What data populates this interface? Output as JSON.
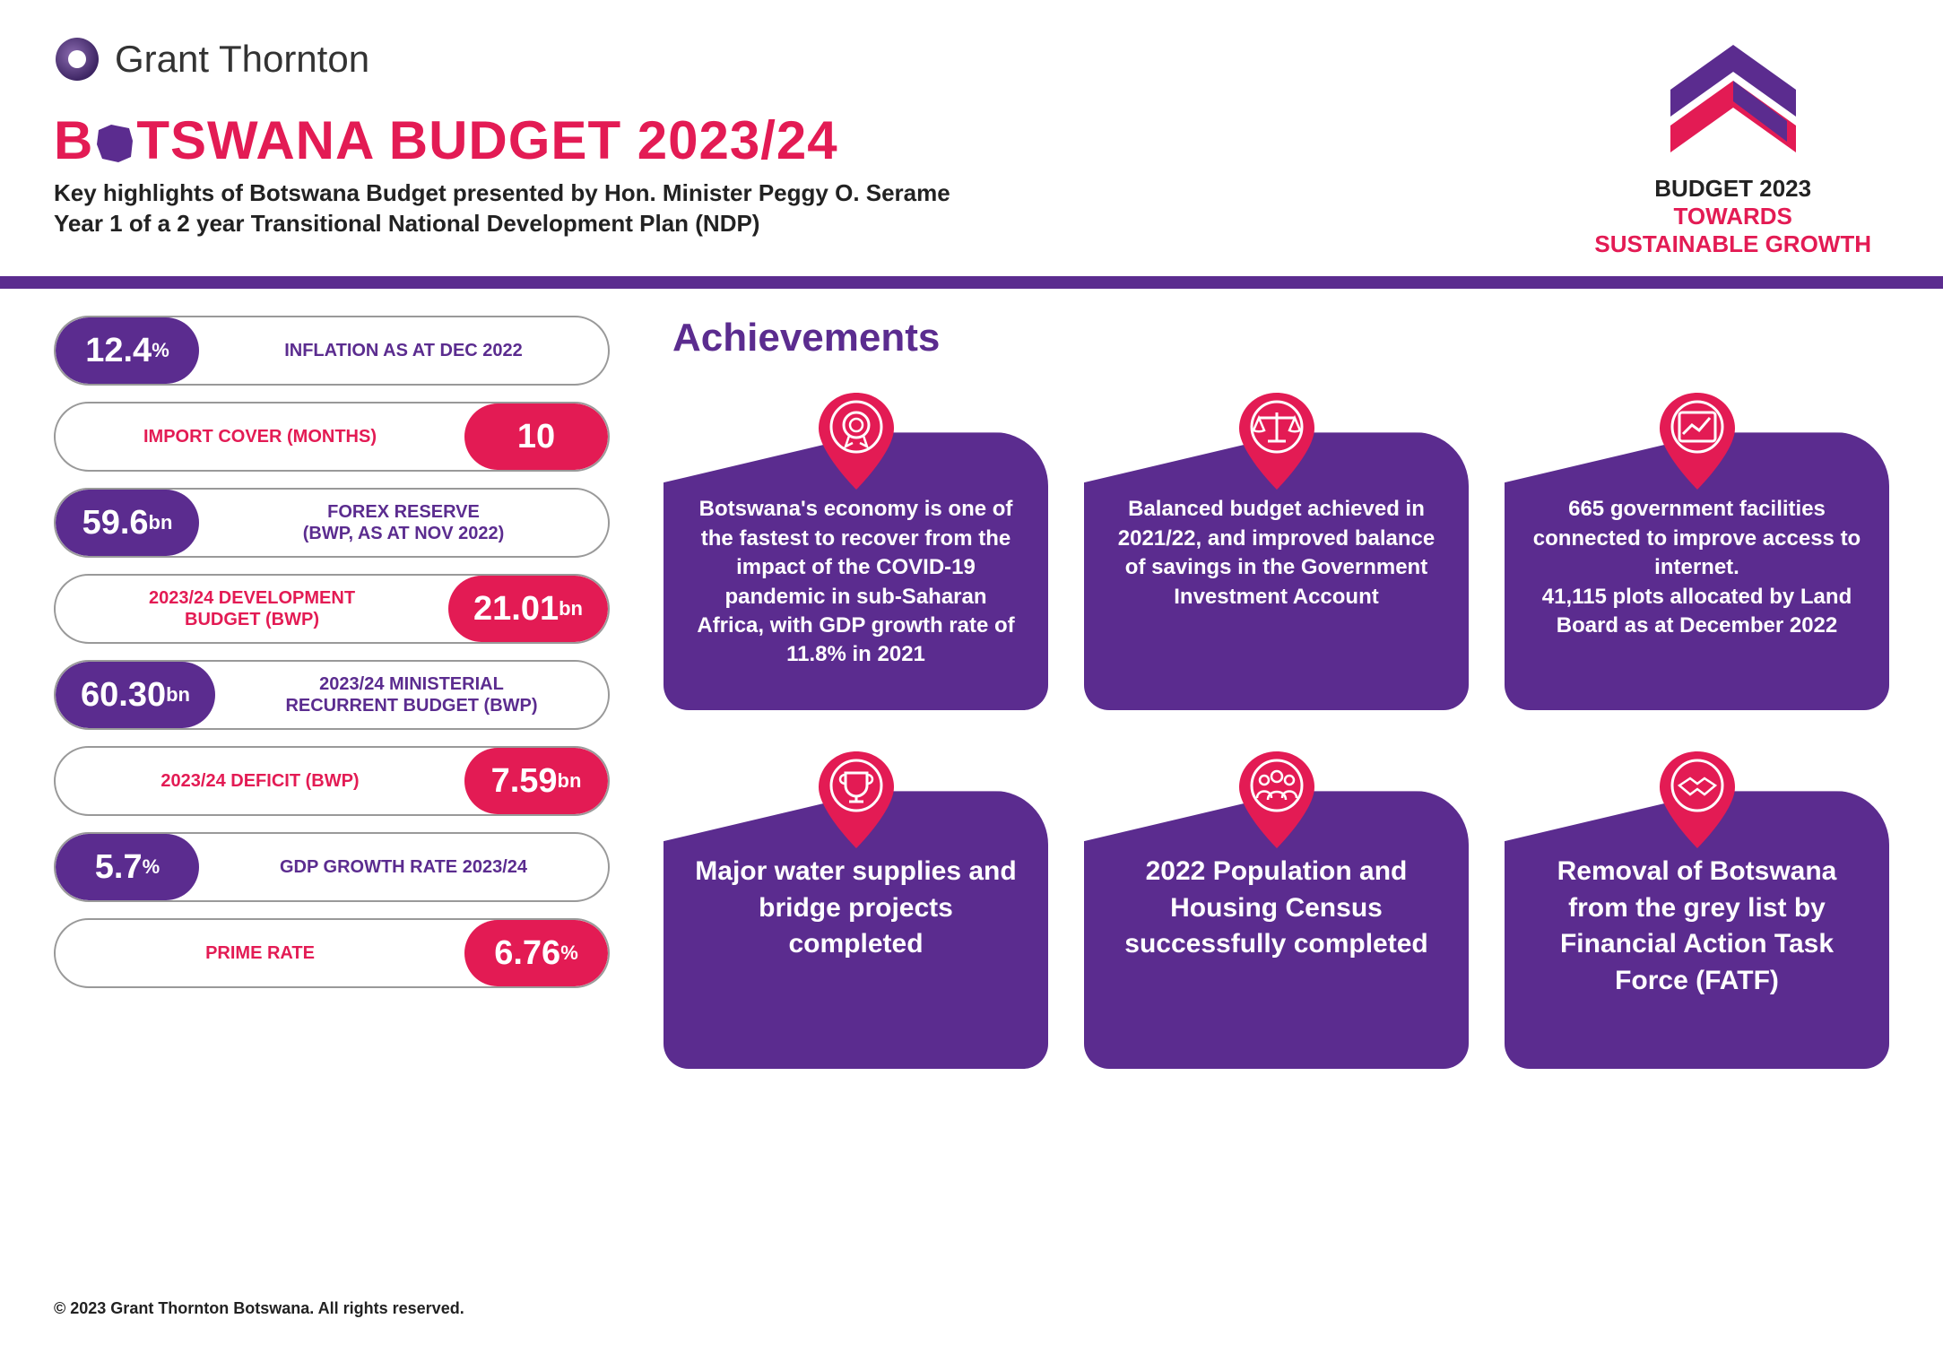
{
  "brand": {
    "name": "Grant Thornton"
  },
  "title": {
    "b": "B",
    "rest": "TSWANA BUDGET 2023/24"
  },
  "subtitle_line1": "Key highlights of Botswana Budget presented by Hon. Minister Peggy O. Serame",
  "subtitle_line2": "Year 1 of a 2 year Transitional National Development Plan (NDP)",
  "badge": {
    "year": "BUDGET 2023",
    "tag1": "TOWARDS",
    "tag2": "SUSTAINABLE GROWTH"
  },
  "colors": {
    "purple": "#5b2c8f",
    "red": "#e31b54",
    "border": "#999999",
    "white": "#ffffff"
  },
  "stats": [
    {
      "side": "left",
      "cap_color": "purple",
      "num": "12.4",
      "unit": "%",
      "label": "INFLATION AS AT DEC 2022",
      "label_color": "purple"
    },
    {
      "side": "right",
      "cap_color": "red",
      "num": "10",
      "unit": "",
      "label": "IMPORT COVER (MONTHS)",
      "label_color": "red"
    },
    {
      "side": "left",
      "cap_color": "purple",
      "num": "59.6",
      "unit": "bn",
      "label": "FOREX RESERVE\n(BWP, AS AT NOV 2022)",
      "label_color": "purple"
    },
    {
      "side": "right",
      "cap_color": "red",
      "num": "21.01",
      "unit": "bn",
      "label": "2023/24 DEVELOPMENT\nBUDGET (BWP)",
      "label_color": "red"
    },
    {
      "side": "left",
      "cap_color": "purple",
      "num": "60.30",
      "unit": "bn",
      "label": "2023/24 MINISTERIAL\nRECURRENT BUDGET (BWP)",
      "label_color": "purple"
    },
    {
      "side": "right",
      "cap_color": "red",
      "num": "7.59",
      "unit": "bn",
      "label": "2023/24 DEFICIT (BWP)",
      "label_color": "red"
    },
    {
      "side": "left",
      "cap_color": "purple",
      "num": "5.7",
      "unit": "%",
      "label": "GDP GROWTH RATE 2023/24",
      "label_color": "purple"
    },
    {
      "side": "right",
      "cap_color": "red",
      "num": "6.76",
      "unit": "%",
      "label": "PRIME RATE",
      "label_color": "red"
    }
  ],
  "achievements": {
    "title": "Achievements",
    "cards": [
      {
        "icon": "award",
        "size": "small",
        "text": "Botswana's economy is one of the fastest to recover from the impact of the COVID-19 pandemic in sub-Saharan Africa, with GDP growth rate of 11.8% in 2021"
      },
      {
        "icon": "scales",
        "size": "small",
        "text": "Balanced budget achieved in 2021/22, and improved balance of savings in the Government Investment Account"
      },
      {
        "icon": "chart",
        "size": "small",
        "text": "665 government facilities connected to improve access to internet.\n41,115 plots allocated by Land Board as at December 2022"
      },
      {
        "icon": "trophy",
        "size": "large",
        "text": "Major water supplies and bridge projects completed"
      },
      {
        "icon": "people",
        "size": "large",
        "text": "2022 Population and Housing Census successfully completed"
      },
      {
        "icon": "handshake",
        "size": "large",
        "text": "Removal of Botswana from the grey list by Financial Action Task Force (FATF)"
      }
    ]
  },
  "copyright": "© 2023 Grant Thornton Botswana. All rights reserved."
}
